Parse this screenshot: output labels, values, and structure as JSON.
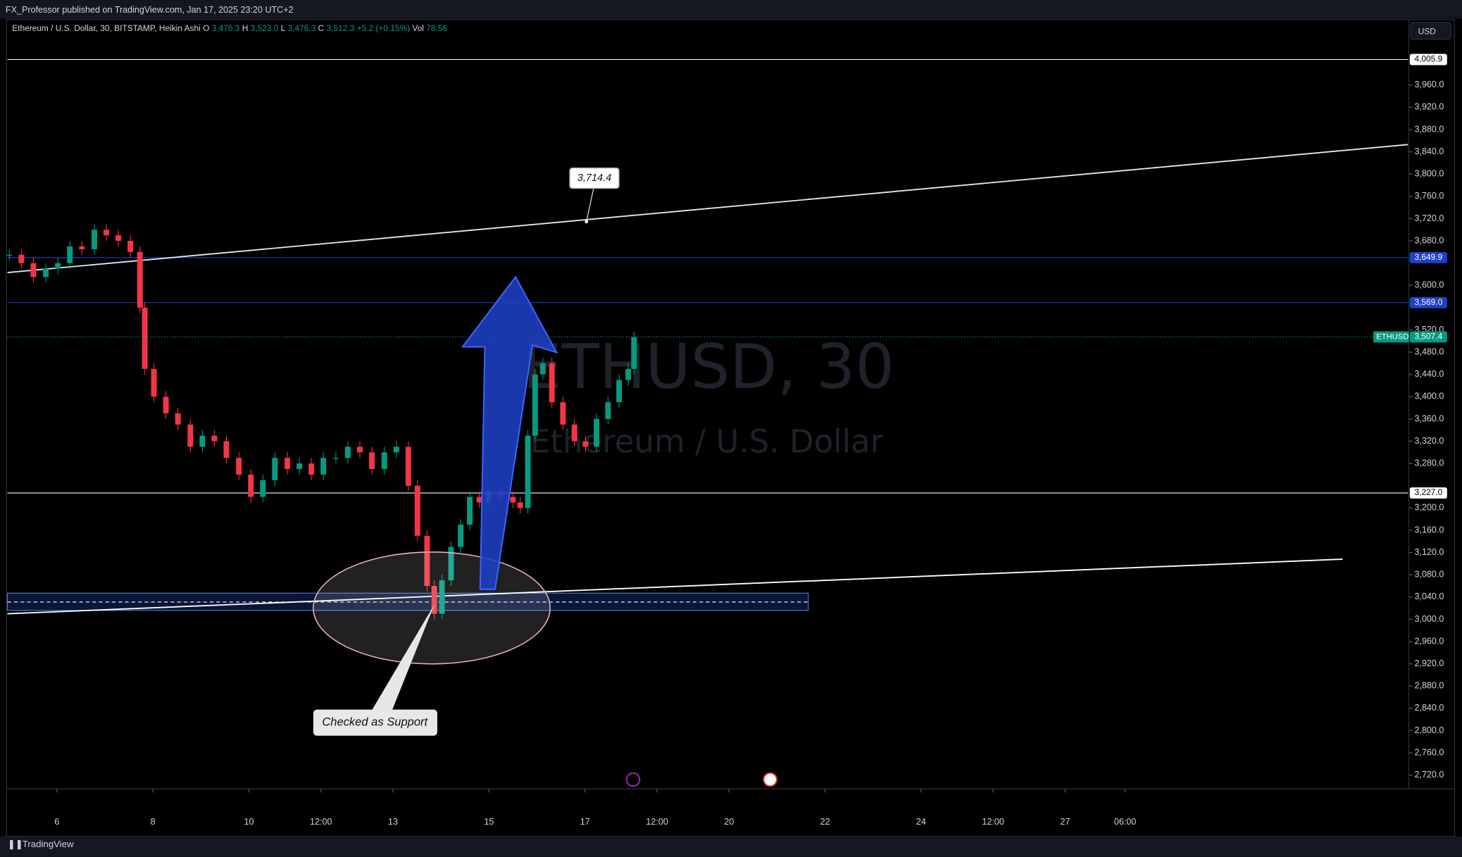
{
  "header": {
    "published": "FX_Professor published on TradingView.com, Jan 17, 2025 23:20 UTC+2",
    "symbol_line": "Ethereum / U.S. Dollar, 30, BITSTAMP, Heikin Ashi",
    "ohlc": [
      {
        "key": "O",
        "value": "3,476.3"
      },
      {
        "key": "H",
        "value": "3,523.0"
      },
      {
        "key": "L",
        "value": "3,476.3"
      },
      {
        "key": "C",
        "value": "3,512.3"
      }
    ],
    "change": "+5.2 (+0.15%)",
    "vol_key": "Vol",
    "vol_value": "78.56",
    "currency_button": "USD"
  },
  "watermark": {
    "symbol": "ETHUSD, 30",
    "name": "Ethereum / U.S. Dollar"
  },
  "footer": {
    "brand": "TradingView"
  },
  "chart_data": {
    "type": "candlestick",
    "up_color": "#089981",
    "down_color": "#f23645",
    "xlim": [
      4.97,
      34.14
    ],
    "ylim": [
      2697,
      4049
    ],
    "xticks": [
      {
        "value": 6,
        "label": "6"
      },
      {
        "value": 8,
        "label": "8"
      },
      {
        "value": 10,
        "label": "10"
      },
      {
        "value": 11.5,
        "label": "12:00"
      },
      {
        "value": 13,
        "label": "13"
      },
      {
        "value": 15,
        "label": "15"
      },
      {
        "value": 17,
        "label": "17"
      },
      {
        "value": 18.5,
        "label": "12:00"
      },
      {
        "value": 20,
        "label": "20"
      },
      {
        "value": 22,
        "label": "22"
      },
      {
        "value": 24,
        "label": "24"
      },
      {
        "value": 25.5,
        "label": "12:00"
      },
      {
        "value": 27,
        "label": "27"
      },
      {
        "value": 28.25,
        "label": "06:00"
      }
    ],
    "yticks": [
      {
        "value": 3960,
        "label": "3,960.0"
      },
      {
        "value": 3920,
        "label": "3,920.0"
      },
      {
        "value": 3880,
        "label": "3,880.0"
      },
      {
        "value": 3840,
        "label": "3,840.0"
      },
      {
        "value": 3800,
        "label": "3,800.0"
      },
      {
        "value": 3760,
        "label": "3,760.0"
      },
      {
        "value": 3720,
        "label": "3,720.0"
      },
      {
        "value": 3680,
        "label": "3,680.0"
      },
      {
        "value": 3600,
        "label": "3,600.0"
      },
      {
        "value": 3520,
        "label": "3,520.0"
      },
      {
        "value": 3480,
        "label": "3,480.0"
      },
      {
        "value": 3440,
        "label": "3,440.0"
      },
      {
        "value": 3400,
        "label": "3,400.0"
      },
      {
        "value": 3360,
        "label": "3,360.0"
      },
      {
        "value": 3320,
        "label": "3,320.0"
      },
      {
        "value": 3280,
        "label": "3,280.0"
      },
      {
        "value": 3200,
        "label": "3,200.0"
      },
      {
        "value": 3160,
        "label": "3,160.0"
      },
      {
        "value": 3120,
        "label": "3,120.0"
      },
      {
        "value": 3080,
        "label": "3,080.0"
      },
      {
        "value": 3040,
        "label": "3,040.0"
      },
      {
        "value": 3000,
        "label": "3,000.0"
      },
      {
        "value": 2960,
        "label": "2,960.0"
      },
      {
        "value": 2920,
        "label": "2,920.0"
      },
      {
        "value": 2880,
        "label": "2,880.0"
      },
      {
        "value": 2840,
        "label": "2,840.0"
      },
      {
        "value": 2800,
        "label": "2,800.0"
      },
      {
        "value": 2760,
        "label": "2,760.0"
      },
      {
        "value": 2720,
        "label": "2,720.0"
      }
    ],
    "x": [
      5.01,
      5.26,
      5.51,
      5.77,
      6.02,
      6.27,
      6.52,
      6.78,
      7.03,
      7.28,
      7.53,
      7.73,
      7.83,
      8.02,
      8.27,
      8.52,
      8.78,
      9.03,
      9.28,
      9.53,
      9.79,
      10.04,
      10.29,
      10.54,
      10.8,
      11.05,
      11.3,
      11.55,
      11.81,
      12.06,
      12.31,
      12.56,
      12.82,
      13.07,
      13.32,
      13.51,
      13.71,
      13.86,
      14.02,
      14.21,
      14.41,
      14.6,
      14.8,
      14.99,
      15.24,
      15.5,
      15.65,
      15.81,
      15.96,
      16.12,
      16.31,
      16.54,
      16.78,
      17.01,
      17.24,
      17.48,
      17.71,
      17.9,
      18.02
    ],
    "values": [
      3655,
      3640,
      3615,
      3630,
      3640,
      3670,
      3665,
      3700,
      3690,
      3680,
      3660,
      3560,
      3450,
      3400,
      3370,
      3350,
      3310,
      3330,
      3320,
      3290,
      3260,
      3220,
      3250,
      3290,
      3270,
      3280,
      3260,
      3290,
      3290,
      3310,
      3300,
      3270,
      3300,
      3310,
      3240,
      3150,
      3060,
      3010,
      3070,
      3130,
      3170,
      3220,
      3210,
      3230,
      3220,
      3210,
      3200,
      3330,
      3440,
      3460,
      3390,
      3350,
      3320,
      3310,
      3360,
      3390,
      3430,
      3450,
      3507
    ],
    "levels": [
      {
        "value": 4005.9,
        "label": "4,005.9",
        "color": "#ffffff"
      },
      {
        "value": 3649.9,
        "label": "3,649.9",
        "color": "#1e40c8"
      },
      {
        "value": 3569.0,
        "label": "3,569.0",
        "color": "#1e40c8"
      },
      {
        "value": 3227.0,
        "label": "3,227.0",
        "color": "#ffffff"
      }
    ],
    "last_price": {
      "symbol": "ETHUSD",
      "value": 3507.4,
      "label": "3,507.4",
      "color": "#089981"
    },
    "trendlines": [
      {
        "x": [
          4.97,
          34.14
        ],
        "y": [
          3623,
          3853
        ],
        "color": "#d8ecf5"
      },
      {
        "x": [
          4.97,
          32.78
        ],
        "y": [
          3010,
          3108
        ],
        "color": "#ffffff"
      }
    ],
    "zone": {
      "x": [
        4.97,
        21.65
      ],
      "y": [
        3016,
        3047
      ],
      "mid": 3031
    },
    "price_note": {
      "x": 17.03,
      "value": 3714.4,
      "label": "3,714.4"
    },
    "support_note": "Checked as Support"
  }
}
